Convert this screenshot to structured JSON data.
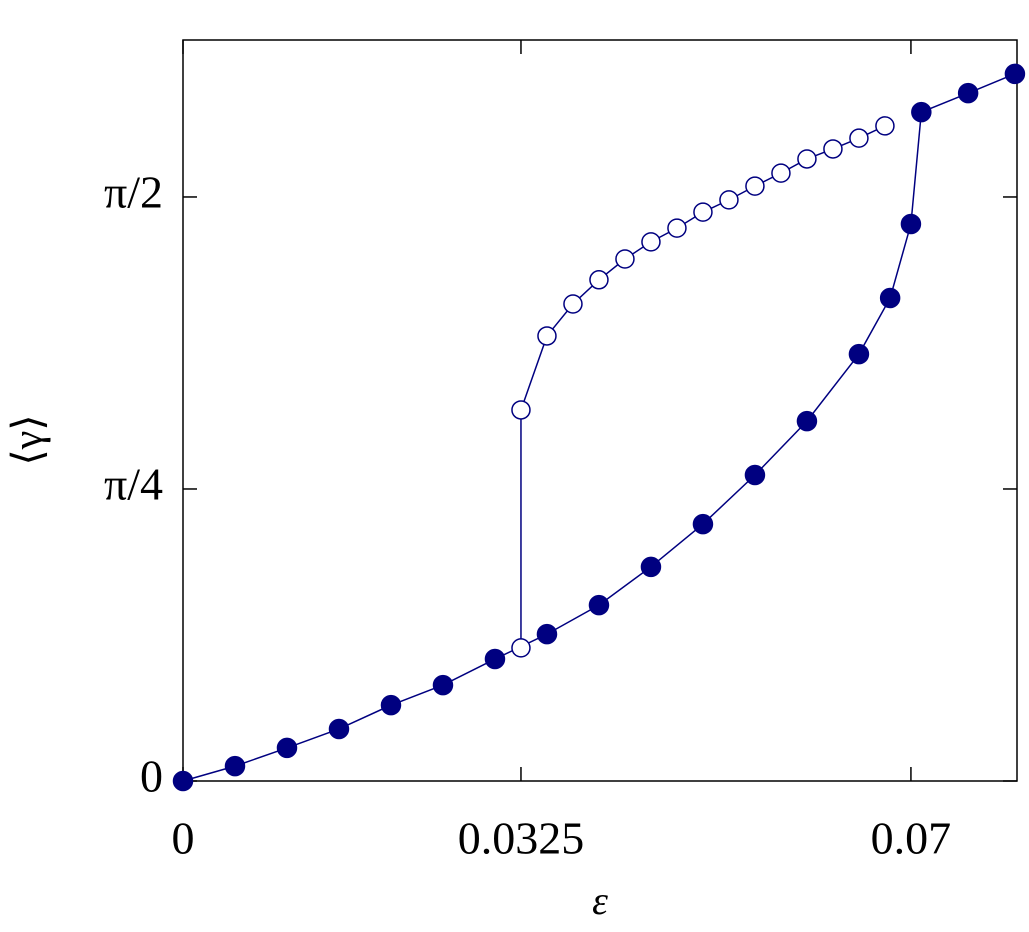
{
  "chart_data": {
    "type": "line",
    "x_label": "ε",
    "y_label": "⟨γ⟩",
    "color": "#000080",
    "xlim": [
      0,
      0.0802
    ],
    "ylim": [
      0,
      1.993
    ],
    "xticks": [
      0,
      0.0325,
      0.07
    ],
    "yticks": [
      0,
      {
        "value": 0.7854,
        "label": "π/4"
      },
      {
        "value": 1.5708,
        "label": "π/2"
      }
    ],
    "series": [
      {
        "marker": "filled",
        "x": [
          0,
          0.005,
          0.01,
          0.015,
          0.02,
          0.025,
          0.03,
          0.035,
          0.04,
          0.045,
          0.05,
          0.055,
          0.06,
          0.065,
          0.068,
          0.07,
          0.071,
          0.0755,
          0.08
        ],
        "values": [
          0,
          0.04,
          0.089,
          0.14,
          0.204,
          0.258,
          0.328,
          0.395,
          0.473,
          0.576,
          0.691,
          0.823,
          0.968,
          1.148,
          1.299,
          1.498,
          1.799,
          1.85,
          1.902
        ]
      },
      {
        "marker": "open",
        "x": [
          0.0325,
          0.0325,
          0.035,
          0.0375,
          0.04,
          0.0425,
          0.045,
          0.0475,
          0.05,
          0.0525,
          0.055,
          0.0575,
          0.06,
          0.0625,
          0.065,
          0.0675
        ],
        "values": [
          0.358,
          0.998,
          1.197,
          1.283,
          1.348,
          1.404,
          1.45,
          1.487,
          1.53,
          1.563,
          1.6,
          1.635,
          1.673,
          1.7,
          1.729,
          1.762
        ]
      }
    ]
  }
}
